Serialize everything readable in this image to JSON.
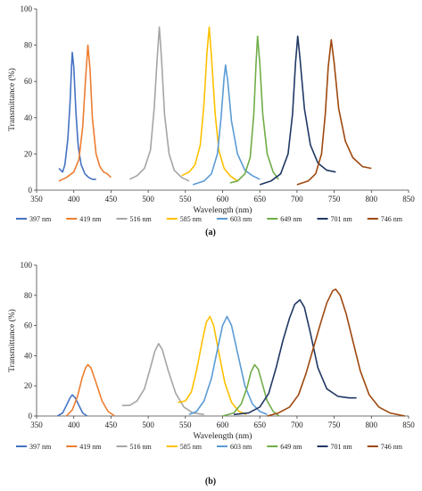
{
  "chart_data": [
    {
      "panel": "(a)",
      "type": "line",
      "xlabel": "Wavelength (nm)",
      "ylabel": "Transmittance (%)",
      "xlim": [
        350,
        850
      ],
      "ylim": [
        0,
        100
      ],
      "xticks": [
        350,
        400,
        450,
        500,
        550,
        600,
        650,
        700,
        750,
        800,
        850
      ],
      "yticks": [
        0,
        20,
        40,
        60,
        80,
        100
      ],
      "grid": false,
      "legend": "bottom",
      "series": [
        {
          "name": "397 nm",
          "color": "#4472c4",
          "points": [
            [
              380,
              12
            ],
            [
              385,
              10
            ],
            [
              388,
              14
            ],
            [
              392,
              28
            ],
            [
              395,
              48
            ],
            [
              397,
              68
            ],
            [
              398,
              76
            ],
            [
              400,
              68
            ],
            [
              403,
              42
            ],
            [
              406,
              24
            ],
            [
              410,
              14
            ],
            [
              415,
              9
            ],
            [
              420,
              7
            ],
            [
              425,
              6
            ],
            [
              430,
              6
            ]
          ]
        },
        {
          "name": "419 nm",
          "color": "#ed7d31",
          "points": [
            [
              380,
              5
            ],
            [
              390,
              7
            ],
            [
              400,
              10
            ],
            [
              407,
              17
            ],
            [
              412,
              35
            ],
            [
              416,
              62
            ],
            [
              419,
              80
            ],
            [
              422,
              66
            ],
            [
              425,
              40
            ],
            [
              430,
              20
            ],
            [
              435,
              13
            ],
            [
              440,
              10
            ],
            [
              445,
              9
            ],
            [
              450,
              7
            ]
          ]
        },
        {
          "name": "516 nm",
          "color": "#a5a5a5",
          "points": [
            [
              475,
              6
            ],
            [
              485,
              8
            ],
            [
              495,
              12
            ],
            [
              503,
              22
            ],
            [
              508,
              45
            ],
            [
              512,
              72
            ],
            [
              515,
              90
            ],
            [
              518,
              72
            ],
            [
              522,
              42
            ],
            [
              528,
              20
            ],
            [
              535,
              11
            ],
            [
              545,
              7
            ],
            [
              555,
              5
            ]
          ]
        },
        {
          "name": "585 nm",
          "color": "#ffc000",
          "points": [
            [
              545,
              8
            ],
            [
              555,
              10
            ],
            [
              563,
              14
            ],
            [
              570,
              25
            ],
            [
              575,
              48
            ],
            [
              579,
              76
            ],
            [
              582,
              90
            ],
            [
              585,
              74
            ],
            [
              590,
              42
            ],
            [
              595,
              22
            ],
            [
              602,
              12
            ],
            [
              610,
              8
            ],
            [
              620,
              5
            ]
          ]
        },
        {
          "name": "603 nm",
          "color": "#5b9bd5",
          "points": [
            [
              560,
              3
            ],
            [
              575,
              5
            ],
            [
              585,
              9
            ],
            [
              593,
              20
            ],
            [
              598,
              40
            ],
            [
              602,
              62
            ],
            [
              604,
              69
            ],
            [
              607,
              60
            ],
            [
              612,
              38
            ],
            [
              620,
              20
            ],
            [
              630,
              11
            ],
            [
              640,
              8
            ],
            [
              650,
              6
            ]
          ]
        },
        {
          "name": "649 nm",
          "color": "#70ad47",
          "points": [
            [
              610,
              4
            ],
            [
              620,
              5
            ],
            [
              630,
              9
            ],
            [
              637,
              18
            ],
            [
              642,
              42
            ],
            [
              645,
              70
            ],
            [
              647,
              85
            ],
            [
              650,
              70
            ],
            [
              654,
              42
            ],
            [
              660,
              20
            ],
            [
              668,
              10
            ],
            [
              675,
              6
            ]
          ]
        },
        {
          "name": "701 nm",
          "color": "#203864",
          "points": [
            [
              650,
              3
            ],
            [
              665,
              5
            ],
            [
              678,
              9
            ],
            [
              688,
              20
            ],
            [
              694,
              42
            ],
            [
              698,
              70
            ],
            [
              701,
              85
            ],
            [
              704,
              73
            ],
            [
              710,
              45
            ],
            [
              718,
              25
            ],
            [
              728,
              15
            ],
            [
              740,
              11
            ],
            [
              752,
              10
            ]
          ]
        },
        {
          "name": "746 nm",
          "color": "#9e480e",
          "points": [
            [
              700,
              3
            ],
            [
              715,
              5
            ],
            [
              725,
              9
            ],
            [
              733,
              20
            ],
            [
              738,
              42
            ],
            [
              742,
              68
            ],
            [
              746,
              83
            ],
            [
              750,
              70
            ],
            [
              756,
              45
            ],
            [
              765,
              27
            ],
            [
              775,
              18
            ],
            [
              788,
              13
            ],
            [
              800,
              12
            ]
          ]
        }
      ]
    },
    {
      "panel": "(b)",
      "type": "line",
      "xlabel": "Wavelength (nm)",
      "ylabel": "Transmittance (%)",
      "xlim": [
        350,
        850
      ],
      "ylim": [
        0,
        100
      ],
      "xticks": [
        350,
        400,
        450,
        500,
        550,
        600,
        650,
        700,
        750,
        800,
        850
      ],
      "yticks": [
        0,
        20,
        40,
        60,
        80,
        100
      ],
      "grid": false,
      "legend": "bottom",
      "series": [
        {
          "name": "397 nm",
          "color": "#4472c4",
          "points": [
            [
              378,
              0
            ],
            [
              385,
              2
            ],
            [
              390,
              7
            ],
            [
              395,
              12
            ],
            [
              398,
              14
            ],
            [
              402,
              12
            ],
            [
              407,
              7
            ],
            [
              412,
              2
            ],
            [
              418,
              0
            ]
          ]
        },
        {
          "name": "419 nm",
          "color": "#ed7d31",
          "points": [
            [
              390,
              0
            ],
            [
              398,
              4
            ],
            [
              405,
              13
            ],
            [
              411,
              25
            ],
            [
              416,
              32
            ],
            [
              419,
              34
            ],
            [
              423,
              32
            ],
            [
              430,
              22
            ],
            [
              438,
              10
            ],
            [
              446,
              3
            ],
            [
              455,
              0
            ]
          ]
        },
        {
          "name": "516 nm",
          "color": "#a5a5a5",
          "points": [
            [
              465,
              7
            ],
            [
              475,
              7
            ],
            [
              485,
              10
            ],
            [
              495,
              18
            ],
            [
              503,
              32
            ],
            [
              509,
              43
            ],
            [
              514,
              48
            ],
            [
              519,
              44
            ],
            [
              527,
              30
            ],
            [
              537,
              15
            ],
            [
              548,
              6
            ],
            [
              560,
              2
            ],
            [
              575,
              1
            ]
          ]
        },
        {
          "name": "585 nm",
          "color": "#ffc000",
          "points": [
            [
              540,
              9
            ],
            [
              550,
              10
            ],
            [
              558,
              16
            ],
            [
              565,
              30
            ],
            [
              572,
              48
            ],
            [
              578,
              62
            ],
            [
              583,
              66
            ],
            [
              588,
              60
            ],
            [
              595,
              42
            ],
            [
              603,
              22
            ],
            [
              612,
              9
            ],
            [
              622,
              3
            ],
            [
              632,
              1
            ]
          ]
        },
        {
          "name": "603 nm",
          "color": "#5b9bd5",
          "points": [
            [
              555,
              1
            ],
            [
              565,
              3
            ],
            [
              575,
              10
            ],
            [
              585,
              25
            ],
            [
              593,
              44
            ],
            [
              600,
              60
            ],
            [
              606,
              66
            ],
            [
              612,
              60
            ],
            [
              620,
              42
            ],
            [
              630,
              20
            ],
            [
              640,
              8
            ],
            [
              650,
              3
            ],
            [
              660,
              1
            ]
          ]
        },
        {
          "name": "649 nm",
          "color": "#70ad47",
          "points": [
            [
              600,
              0
            ],
            [
              615,
              2
            ],
            [
              625,
              8
            ],
            [
              633,
              19
            ],
            [
              638,
              29
            ],
            [
              643,
              34
            ],
            [
              648,
              31
            ],
            [
              653,
              22
            ],
            [
              660,
              10
            ],
            [
              668,
              3
            ],
            [
              676,
              0
            ]
          ]
        },
        {
          "name": "701 nm",
          "color": "#203864",
          "points": [
            [
              615,
              1
            ],
            [
              635,
              2
            ],
            [
              650,
              6
            ],
            [
              662,
              15
            ],
            [
              672,
              32
            ],
            [
              681,
              50
            ],
            [
              690,
              65
            ],
            [
              697,
              74
            ],
            [
              704,
              77
            ],
            [
              710,
              72
            ],
            [
              718,
              55
            ],
            [
              728,
              32
            ],
            [
              740,
              18
            ],
            [
              755,
              13
            ],
            [
              770,
              12
            ],
            [
              780,
              12
            ]
          ]
        },
        {
          "name": "746 nm",
          "color": "#9e480e",
          "points": [
            [
              660,
              0
            ],
            [
              675,
              2
            ],
            [
              690,
              6
            ],
            [
              702,
              14
            ],
            [
              712,
              28
            ],
            [
              722,
              45
            ],
            [
              732,
              62
            ],
            [
              740,
              75
            ],
            [
              748,
              83
            ],
            [
              752,
              84
            ],
            [
              758,
              80
            ],
            [
              766,
              68
            ],
            [
              775,
              50
            ],
            [
              785,
              30
            ],
            [
              797,
              14
            ],
            [
              810,
              6
            ],
            [
              825,
              2
            ],
            [
              845,
              0
            ]
          ]
        }
      ]
    }
  ]
}
